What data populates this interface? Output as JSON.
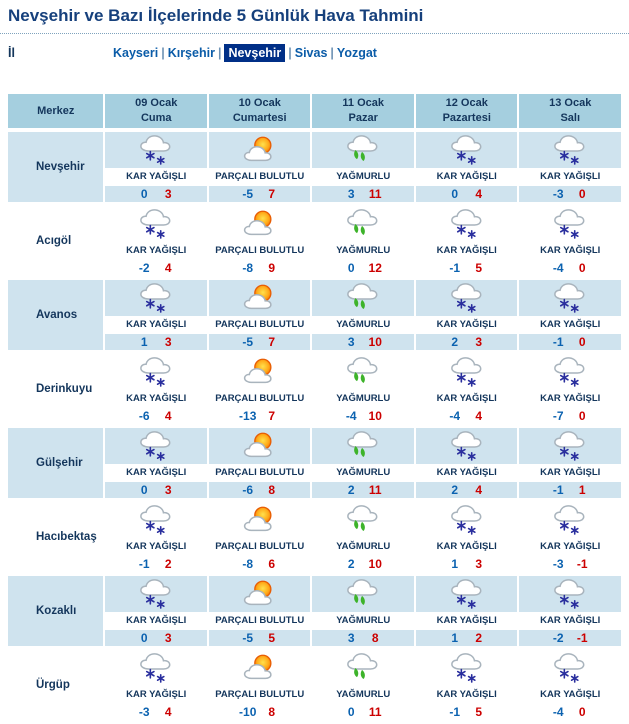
{
  "page": {
    "title": "Nevşehir ve Bazı İlçelerinde 5 Günlük Hava Tahmini"
  },
  "region_selector": {
    "label": "İl",
    "separator": "|",
    "links": [
      "Kayseri",
      "Kırşehir",
      "Nevşehir",
      "Sivas",
      "Yozgat"
    ],
    "selected": "Nevşehir"
  },
  "table": {
    "corner_header": "Merkez",
    "day_headers": [
      {
        "date": "09 Ocak",
        "day": "Cuma"
      },
      {
        "date": "10 Ocak",
        "day": "Cumartesi"
      },
      {
        "date": "11 Ocak",
        "day": "Pazar"
      },
      {
        "date": "12 Ocak",
        "day": "Pazartesi"
      },
      {
        "date": "13 Ocak",
        "day": "Salı"
      }
    ],
    "rows": [
      {
        "district": "Nevşehir",
        "forecasts": [
          {
            "icon": "snow-cloud-icon",
            "condition": "KAR YAĞIŞLI",
            "min": 0,
            "max": 3
          },
          {
            "icon": "sun-cloud-icon",
            "condition": "PARÇALI BULUTLU",
            "min": -5,
            "max": 7
          },
          {
            "icon": "rain-cloud-icon",
            "condition": "YAĞMURLU",
            "min": 3,
            "max": 11
          },
          {
            "icon": "snow-cloud-icon",
            "condition": "KAR YAĞIŞLI",
            "min": 0,
            "max": 4
          },
          {
            "icon": "snow-cloud-icon",
            "condition": "KAR YAĞIŞLI",
            "min": -3,
            "max": 0
          }
        ]
      },
      {
        "district": "Acıgöl",
        "forecasts": [
          {
            "icon": "snow-cloud-icon",
            "condition": "KAR YAĞIŞLI",
            "min": -2,
            "max": 4
          },
          {
            "icon": "sun-cloud-icon",
            "condition": "PARÇALI BULUTLU",
            "min": -8,
            "max": 9
          },
          {
            "icon": "rain-cloud-icon",
            "condition": "YAĞMURLU",
            "min": 0,
            "max": 12
          },
          {
            "icon": "snow-cloud-icon",
            "condition": "KAR YAĞIŞLI",
            "min": -1,
            "max": 5
          },
          {
            "icon": "snow-cloud-icon",
            "condition": "KAR YAĞIŞLI",
            "min": -4,
            "max": 0
          }
        ]
      },
      {
        "district": "Avanos",
        "forecasts": [
          {
            "icon": "snow-cloud-icon",
            "condition": "KAR YAĞIŞLI",
            "min": 1,
            "max": 3
          },
          {
            "icon": "sun-cloud-icon",
            "condition": "PARÇALI BULUTLU",
            "min": -5,
            "max": 7
          },
          {
            "icon": "rain-cloud-icon",
            "condition": "YAĞMURLU",
            "min": 3,
            "max": 10
          },
          {
            "icon": "snow-cloud-icon",
            "condition": "KAR YAĞIŞLI",
            "min": 2,
            "max": 3
          },
          {
            "icon": "snow-cloud-icon",
            "condition": "KAR YAĞIŞLI",
            "min": -1,
            "max": 0
          }
        ]
      },
      {
        "district": "Derinkuyu",
        "forecasts": [
          {
            "icon": "snow-cloud-icon",
            "condition": "KAR YAĞIŞLI",
            "min": -6,
            "max": 4
          },
          {
            "icon": "sun-cloud-icon",
            "condition": "PARÇALI BULUTLU",
            "min": -13,
            "max": 7
          },
          {
            "icon": "rain-cloud-icon",
            "condition": "YAĞMURLU",
            "min": -4,
            "max": 10
          },
          {
            "icon": "snow-cloud-icon",
            "condition": "KAR YAĞIŞLI",
            "min": -4,
            "max": 4
          },
          {
            "icon": "snow-cloud-icon",
            "condition": "KAR YAĞIŞLI",
            "min": -7,
            "max": 0
          }
        ]
      },
      {
        "district": "Gülşehir",
        "forecasts": [
          {
            "icon": "snow-cloud-icon",
            "condition": "KAR YAĞIŞLI",
            "min": 0,
            "max": 3
          },
          {
            "icon": "sun-cloud-icon",
            "condition": "PARÇALI BULUTLU",
            "min": -6,
            "max": 8
          },
          {
            "icon": "rain-cloud-icon",
            "condition": "YAĞMURLU",
            "min": 2,
            "max": 11
          },
          {
            "icon": "snow-cloud-icon",
            "condition": "KAR YAĞIŞLI",
            "min": 2,
            "max": 4
          },
          {
            "icon": "snow-cloud-icon",
            "condition": "KAR YAĞIŞLI",
            "min": -1,
            "max": 1
          }
        ]
      },
      {
        "district": "Hacıbektaş",
        "forecasts": [
          {
            "icon": "snow-cloud-icon",
            "condition": "KAR YAĞIŞLI",
            "min": -1,
            "max": 2
          },
          {
            "icon": "sun-cloud-icon",
            "condition": "PARÇALI BULUTLU",
            "min": -8,
            "max": 6
          },
          {
            "icon": "rain-cloud-icon",
            "condition": "YAĞMURLU",
            "min": 2,
            "max": 10
          },
          {
            "icon": "snow-cloud-icon",
            "condition": "KAR YAĞIŞLI",
            "min": 1,
            "max": 3
          },
          {
            "icon": "snow-cloud-icon",
            "condition": "KAR YAĞIŞLI",
            "min": -3,
            "max": -1
          }
        ]
      },
      {
        "district": "Kozaklı",
        "forecasts": [
          {
            "icon": "snow-cloud-icon",
            "condition": "KAR YAĞIŞLI",
            "min": 0,
            "max": 3
          },
          {
            "icon": "sun-cloud-icon",
            "condition": "PARÇALI BULUTLU",
            "min": -5,
            "max": 5
          },
          {
            "icon": "rain-cloud-icon",
            "condition": "YAĞMURLU",
            "min": 3,
            "max": 8
          },
          {
            "icon": "snow-cloud-icon",
            "condition": "KAR YAĞIŞLI",
            "min": 1,
            "max": 2
          },
          {
            "icon": "snow-cloud-icon",
            "condition": "KAR YAĞIŞLI",
            "min": -2,
            "max": -1
          }
        ]
      },
      {
        "district": "Ürgüp",
        "forecasts": [
          {
            "icon": "snow-cloud-icon",
            "condition": "KAR YAĞIŞLI",
            "min": -3,
            "max": 4
          },
          {
            "icon": "sun-cloud-icon",
            "condition": "PARÇALI BULUTLU",
            "min": -10,
            "max": 8
          },
          {
            "icon": "rain-cloud-icon",
            "condition": "YAĞMURLU",
            "min": 0,
            "max": 11
          },
          {
            "icon": "snow-cloud-icon",
            "condition": "KAR YAĞIŞLI",
            "min": -1,
            "max": 5
          },
          {
            "icon": "snow-cloud-icon",
            "condition": "KAR YAĞIŞLI",
            "min": -4,
            "max": 0
          }
        ]
      }
    ]
  },
  "legend": {
    "conditions": [
      "KAR YAĞIŞLI",
      "PARÇALI BULUTLU",
      "YAĞMURLU"
    ]
  },
  "colors": {
    "title_navy": "#16407c",
    "text_navy": "#14365c",
    "header_blue": "#a5cfdf",
    "row_blue": "#cfe3ee",
    "selected_link_bg": "#002f87",
    "link_blue": "#0b5ca8",
    "min_temp_blue": "#0b62b0",
    "max_temp_red": "#cc0000",
    "snowflake_blue": "#2a2f9e",
    "rain_green": "#3db32a",
    "sun_orange": "#ff8a00"
  }
}
